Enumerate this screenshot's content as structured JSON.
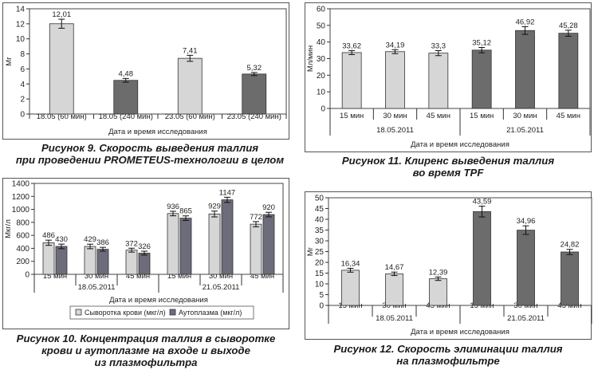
{
  "chart_data": [
    {
      "id": "fig9",
      "type": "bar",
      "caption": [
        "Рисунок 9. Скорость выведения таллия",
        "при проведении PROMETEUS-технологии в целом"
      ],
      "categories": [
        "18.05 (60 мин)",
        "18.05 (240 мин)",
        "23.05 (60 мин)",
        "23.05 (240 мин)"
      ],
      "values": [
        12.01,
        4.48,
        7.41,
        5.32
      ],
      "labels": [
        "12,01",
        "4,48",
        "7,41",
        "5,32"
      ],
      "errors": [
        0.6,
        0.25,
        0.4,
        0.2
      ],
      "bar_colors": [
        "#d6d6d6",
        "#6c6c6c",
        "#d6d6d6",
        "#6c6c6c"
      ],
      "ylim": [
        0,
        14
      ],
      "yticks": [
        0,
        2,
        4,
        6,
        8,
        10,
        12,
        14
      ],
      "ylabel": "Мг",
      "xlabel": "Дата и время исследования",
      "groups": []
    },
    {
      "id": "fig11",
      "type": "bar",
      "caption": [
        "Рисунок 11. Клиренс выведения таллия",
        "во время TPF"
      ],
      "categories": [
        "15 мин",
        "30 мин",
        "45 мин",
        "15 мин",
        "30 мин",
        "45 мин"
      ],
      "values": [
        33.62,
        34.19,
        33.3,
        35.12,
        46.92,
        45.28
      ],
      "labels": [
        "33,62",
        "34,19",
        "33,3",
        "35,12",
        "46,92",
        "45,28"
      ],
      "errors": [
        1.2,
        1.2,
        1.5,
        1.6,
        2.3,
        1.8
      ],
      "bar_colors": [
        "#d6d6d6",
        "#d6d6d6",
        "#d6d6d6",
        "#6c6c6c",
        "#6c6c6c",
        "#6c6c6c"
      ],
      "ylim": [
        0,
        60
      ],
      "yticks": [
        0,
        10,
        20,
        30,
        40,
        50,
        60
      ],
      "ylabel": "Мл/мин",
      "xlabel": "Дата и время исследования",
      "groups": [
        "18.05.2011",
        "21.05.2011"
      ]
    },
    {
      "id": "fig10",
      "type": "bar",
      "caption": [
        "Рисунок 10. Концентрация таллия в сыворотке",
        "крови и аутоплазме на входе и выходе",
        "из плазмофильтра"
      ],
      "categories": [
        "15 мин",
        "30 мин",
        "45 мин",
        "15 мин",
        "30 мин",
        "45 мин"
      ],
      "series": [
        {
          "name": "Сыворотка крови (мкг/л)",
          "values": [
            486,
            429,
            372,
            936,
            929,
            772
          ],
          "labels": [
            "486",
            "429",
            "372",
            "936",
            "929",
            "772"
          ],
          "errors": [
            40,
            35,
            30,
            35,
            45,
            40
          ],
          "color": "#d6d6d6"
        },
        {
          "name": "Аутоплазма (мкг/л)",
          "values": [
            430,
            386,
            326,
            865,
            1147,
            920
          ],
          "labels": [
            "430",
            "386",
            "326",
            "865",
            "1147",
            "920"
          ],
          "errors": [
            35,
            30,
            30,
            35,
            40,
            35
          ],
          "color": "#6c6c7a"
        }
      ],
      "ylim": [
        0,
        1400
      ],
      "yticks": [
        0,
        200,
        400,
        600,
        800,
        1000,
        1200,
        1400
      ],
      "ylabel": "Мкг/л",
      "xlabel": "Дата и время исследования",
      "groups": [
        "18.05.2011",
        "21.05.2011"
      ],
      "legend": "bottom"
    },
    {
      "id": "fig12",
      "type": "bar",
      "caption": [
        "Рисунок 12. Скорость элиминации таллия",
        "на плазмофильтре"
      ],
      "categories": [
        "15 мин",
        "30 мин",
        "45 мин",
        "15 мин",
        "30 мин",
        "45 мин"
      ],
      "values": [
        16.34,
        14.67,
        12.39,
        43.59,
        34.96,
        24.82
      ],
      "labels": [
        "16,34",
        "14,67",
        "12,39",
        "43,59",
        "34,96",
        "24,82"
      ],
      "errors": [
        0.9,
        0.8,
        0.8,
        2.5,
        2.0,
        1.2
      ],
      "bar_colors": [
        "#d6d6d6",
        "#d6d6d6",
        "#d6d6d6",
        "#6c6c6c",
        "#6c6c6c",
        "#6c6c6c"
      ],
      "ylim": [
        0,
        50
      ],
      "yticks": [
        0,
        5,
        10,
        15,
        20,
        25,
        30,
        35,
        40,
        45,
        50
      ],
      "ylabel": "Мг",
      "xlabel": "Дата и время исследования",
      "groups": [
        "18.05.2011",
        "21.05.2011"
      ]
    }
  ]
}
